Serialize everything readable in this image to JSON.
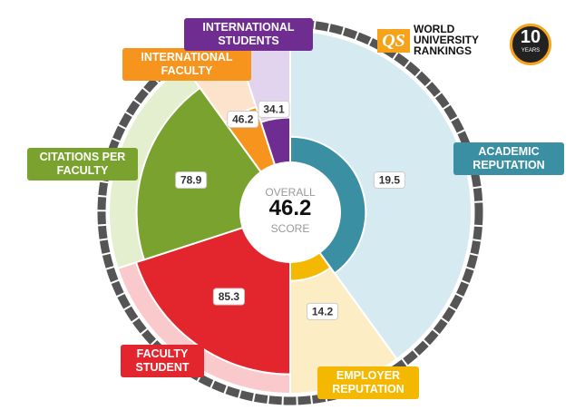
{
  "chart_data": {
    "type": "polar-area",
    "categories": [
      "ACADEMIC REPUTATION",
      "EMPLOYER REPUTATION",
      "FACULTY STUDENT",
      "CITATIONS PER FACULTY",
      "INTERNATIONAL FACULTY",
      "INTERNATIONAL STUDENTS"
    ],
    "values": [
      19.5,
      14.2,
      85.3,
      78.9,
      46.2,
      34.1
    ],
    "weights": [
      40,
      10,
      20,
      20,
      5,
      5
    ],
    "colors": [
      "#3a8fa3",
      "#f5b800",
      "#e3262e",
      "#79a22e",
      "#f7941d",
      "#6f2d91"
    ],
    "light_colors": [
      "#d6eaf2",
      "#fdedc4",
      "#f9c9cc",
      "#e4efd0",
      "#fde3cc",
      "#e2d3ee"
    ],
    "label_colors": [
      "#3a8fa3",
      "#f5b800",
      "#e3262e",
      "#79a22e",
      "#f7941d",
      "#6f2d91"
    ],
    "center": {
      "top": "OVERALL",
      "value": "46.2",
      "bottom": "SCORE"
    }
  },
  "logo": {
    "mark": "QS",
    "title": "WORLD UNIVERSITY RANKINGS",
    "anniversary": "10",
    "anniversary_unit": "YEARS"
  }
}
